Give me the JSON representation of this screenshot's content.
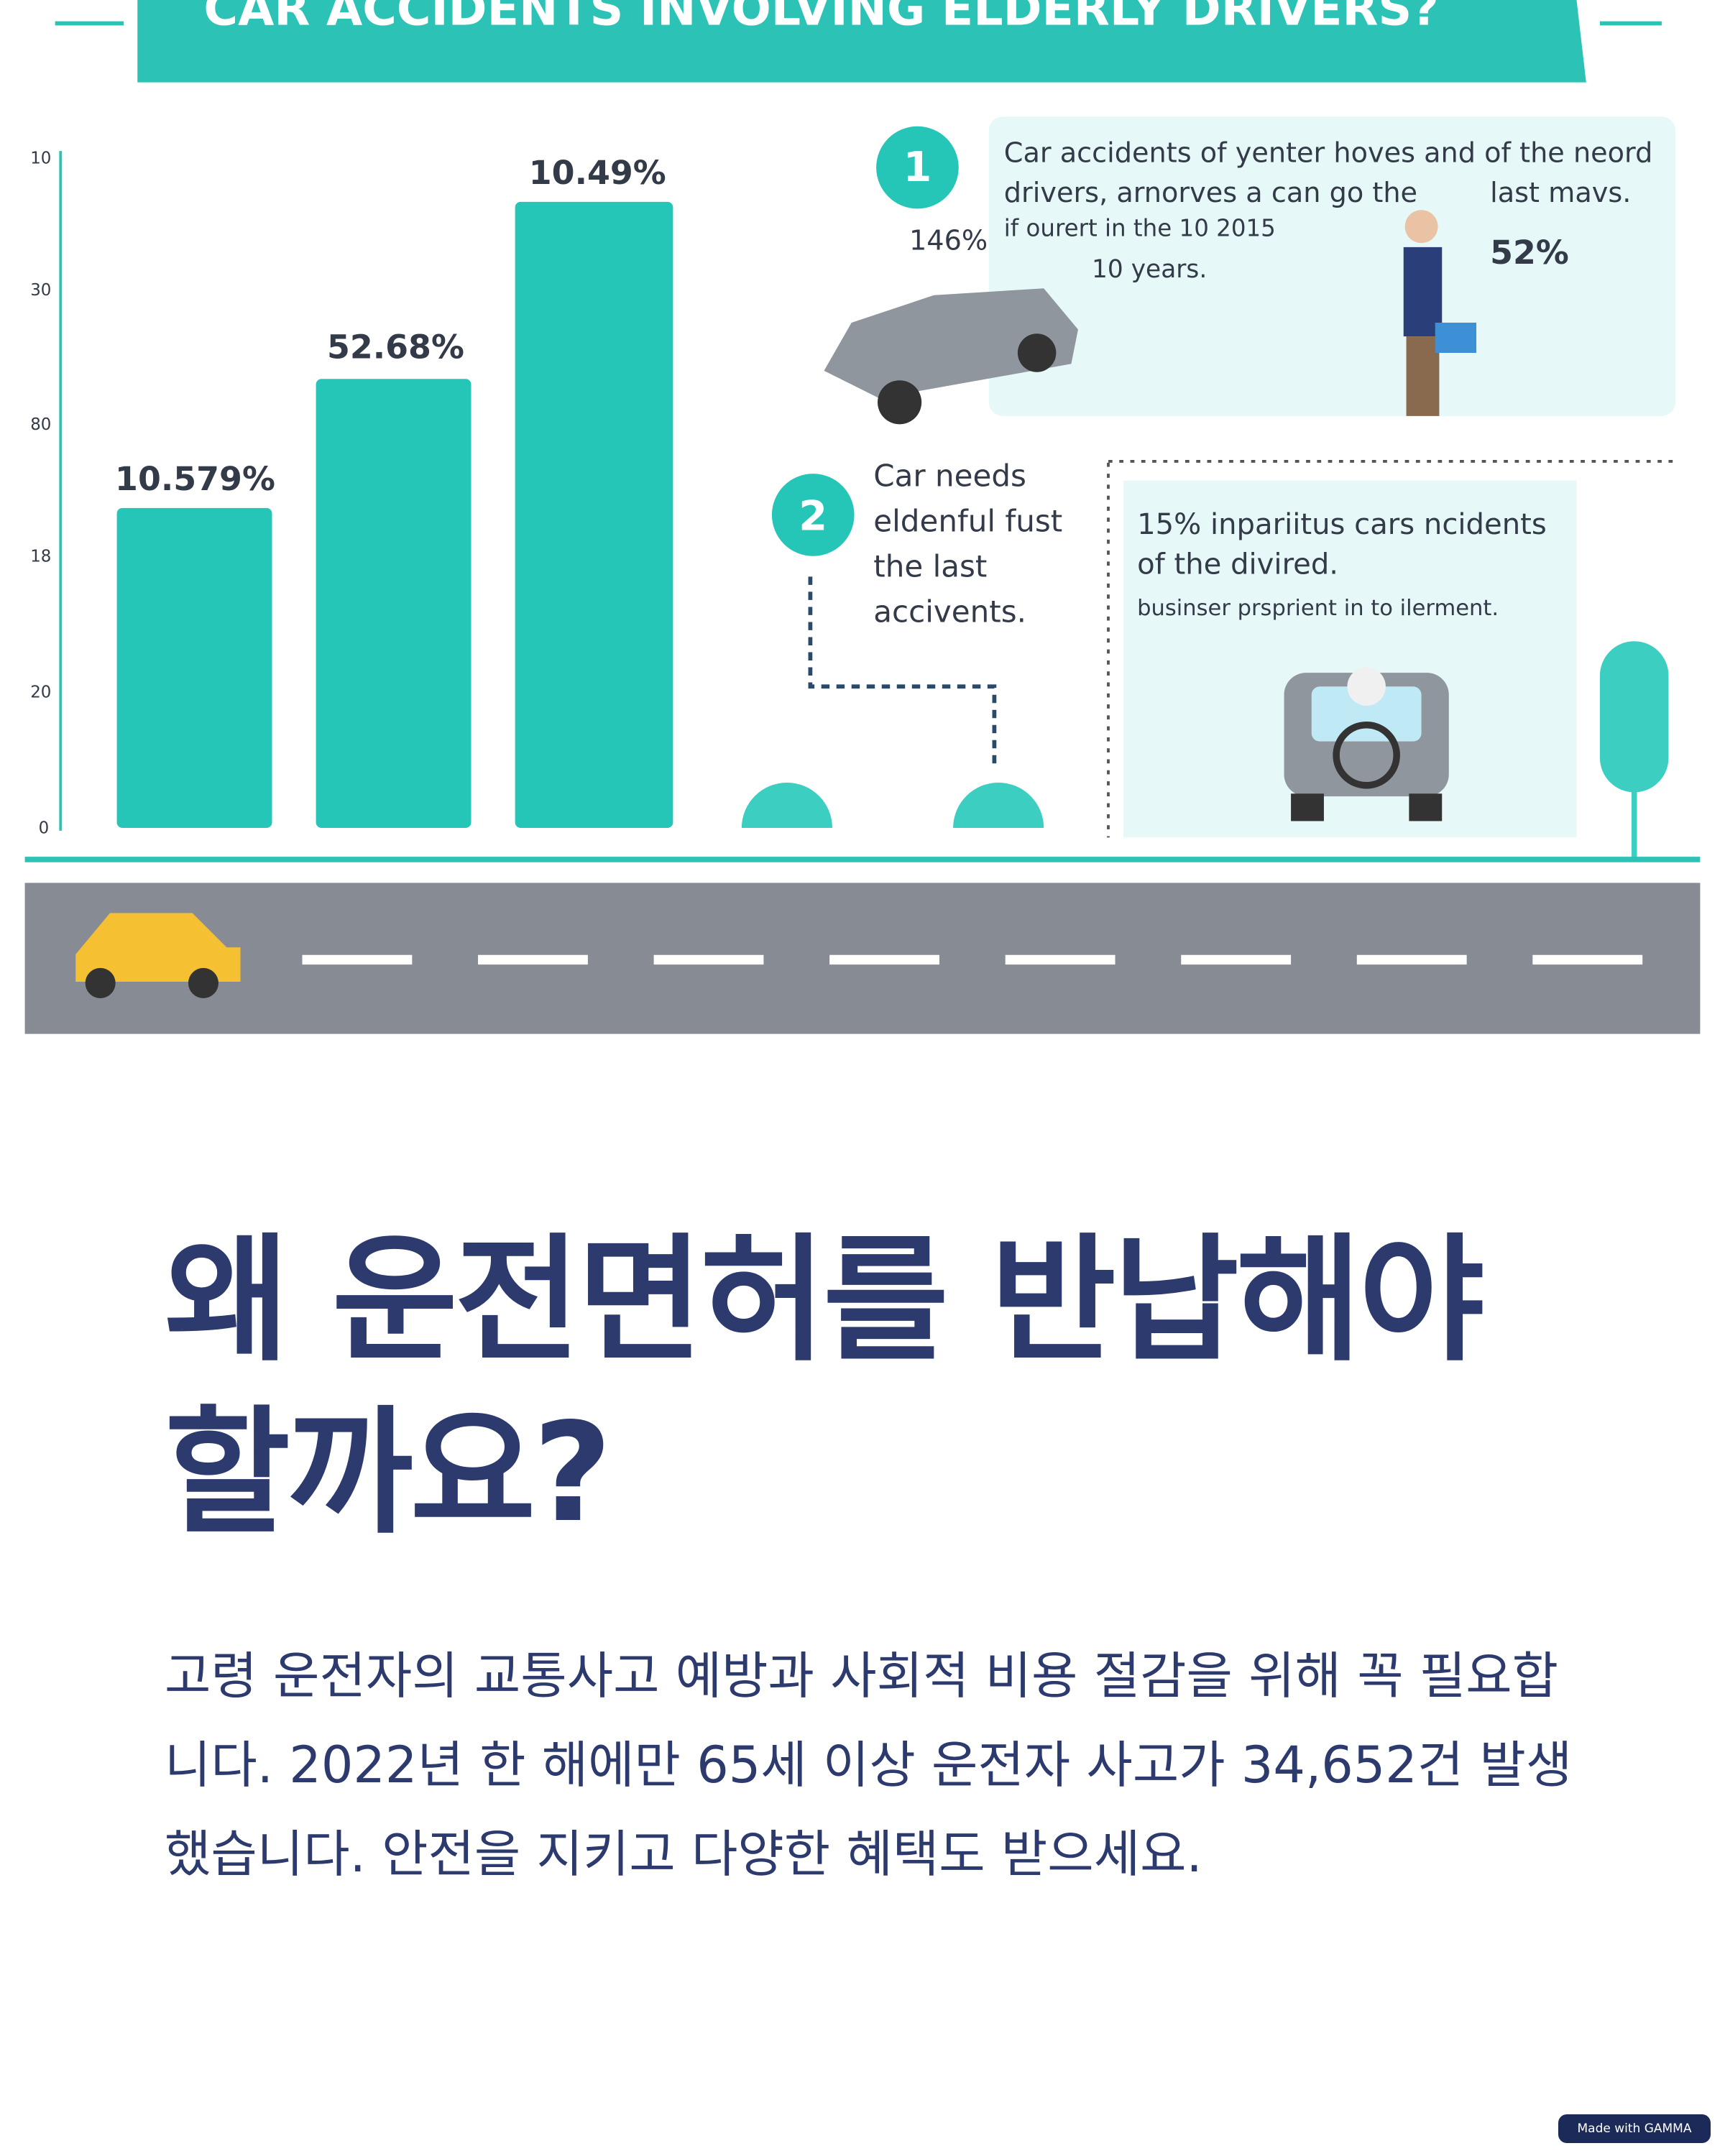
{
  "infographic": {
    "title": "CAR ACCIDENTS INVOLVING ELDERLY DRIVERS?",
    "axis_labels": [
      "10",
      "30",
      "80",
      "18",
      "20",
      "0"
    ],
    "bar_labels": [
      "10.579%",
      "52.68%",
      "10.49%"
    ],
    "callout1": {
      "number": "1",
      "lines": [
        "Car accidents of yenter hoves and of the neord",
        "drivers, arnorves a can go the",
        "last mavs.",
        "146%",
        "if ourert in the 10 2015",
        "10 years.",
        "52%"
      ]
    },
    "callout2": {
      "number": "2",
      "lines": [
        "Car needs",
        "eldenful fust",
        "the last",
        "accivents."
      ]
    },
    "callout3": {
      "lines": [
        "15% inpariitus cars ncidents",
        "of the divired.",
        "businser prsprient in to ilerment."
      ]
    }
  },
  "heading": "왜 운전면허를 반납해야 할까요?",
  "paragraph": "고령 운전자의 교통사고 예방과 사회적 비용 절감을 위해 꼭 필요합니다. 2022년 한 해에만 65세 이상 운전자 사고가 34,652건 발생했습니다. 안전을 지키고 다양한 혜택도 받으세요.",
  "badge": "Made with GAMMA"
}
